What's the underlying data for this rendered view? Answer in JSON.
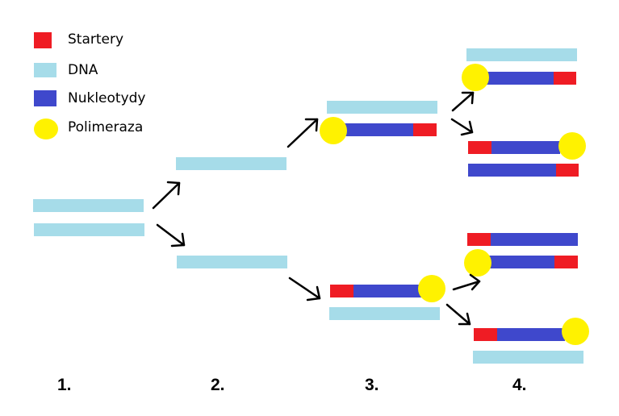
{
  "legend": {
    "items": [
      {
        "label": "Startery",
        "color": "#ef1c24",
        "shape": "square"
      },
      {
        "label": "DNA",
        "color": "#a6dce9",
        "shape": "square"
      },
      {
        "label": "Nukleotydy",
        "color": "#3f48cc",
        "shape": "square"
      },
      {
        "label": "Polimeraza",
        "color": "#fff200",
        "shape": "circle"
      }
    ]
  },
  "stages": [
    "1.",
    "2.",
    "3.",
    "4."
  ],
  "colors": {
    "dna": "#a6dce9",
    "primer": "#ef1c24",
    "nucleotides": "#3f48cc",
    "polymerase": "#fff200"
  }
}
